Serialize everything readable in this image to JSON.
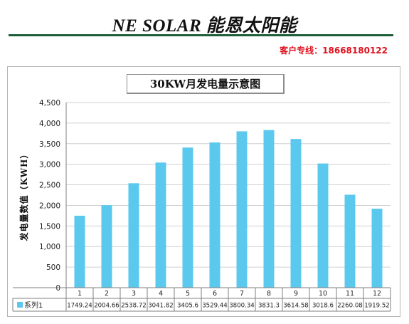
{
  "header": {
    "brand": "NE SOLAR 能恩太阳能",
    "contact": "客户专线：18668180122"
  },
  "chart_data": {
    "type": "bar",
    "title": "30KW月发电量示意图",
    "ylabel": "发电量数值（KWH）",
    "xlabel": "",
    "ylim": [
      0,
      4500
    ],
    "yticks": [
      0,
      500,
      1000,
      1500,
      2000,
      2500,
      3000,
      3500,
      4000,
      4500
    ],
    "ytick_labels": [
      "0",
      "500",
      "1,000",
      "1,500",
      "2,000",
      "2,500",
      "3,000",
      "3,500",
      "4,000",
      "4,500"
    ],
    "grid": true,
    "legend": "data-table",
    "categories": [
      "1",
      "2",
      "3",
      "4",
      "5",
      "6",
      "7",
      "8",
      "9",
      "10",
      "11",
      "12"
    ],
    "series": [
      {
        "name": "系列1",
        "color": "#5bc8ee",
        "values": [
          1749.24,
          2004.66,
          2538.72,
          3041.82,
          3405.6,
          3529.44,
          3800.34,
          3831.3,
          3614.58,
          3018.6,
          2260.08,
          1919.52
        ],
        "labels": [
          "1749.24",
          "2004.66",
          "2538.72",
          "3041.82",
          "3405.6",
          "3529.44",
          "3800.34",
          "3831.3",
          "3614.58",
          "3018.6",
          "2260.08",
          "1919.52"
        ]
      }
    ]
  },
  "colors": {
    "bar": "#5bc8ee",
    "brand_rule": "#1e5f3a",
    "contact": "#e0101e",
    "grid": "#d0d0d0"
  }
}
